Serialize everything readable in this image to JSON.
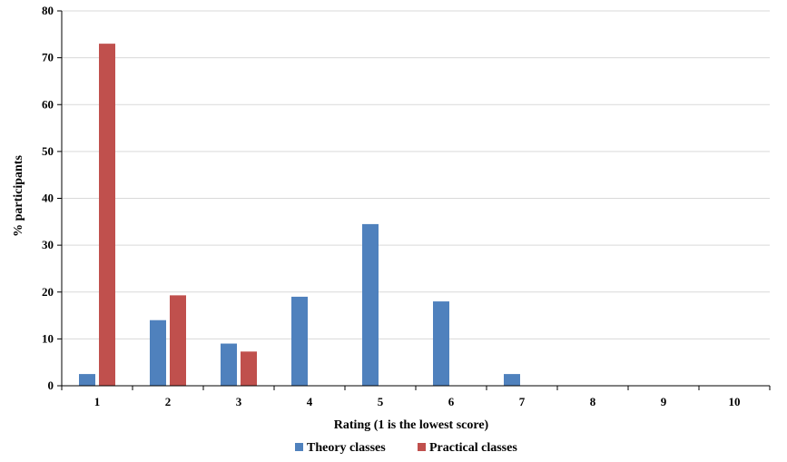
{
  "chart_data": {
    "type": "bar",
    "xlabel": "Rating (1 is the lowest score)",
    "ylabel": "% participants",
    "ylim": [
      0,
      80
    ],
    "yticks": [
      0,
      10,
      20,
      30,
      40,
      50,
      60,
      70,
      80
    ],
    "categories": [
      "1",
      "2",
      "3",
      "4",
      "5",
      "6",
      "7",
      "8",
      "9",
      "10"
    ],
    "grid": true,
    "legend_position": "bottom",
    "series": [
      {
        "name": "Theory classes",
        "color": "#4F81BD",
        "values": [
          2.5,
          14,
          9,
          19,
          34.5,
          18,
          2.5,
          0,
          0,
          0
        ]
      },
      {
        "name": "Practical classes",
        "color": "#C0504D",
        "values": [
          73,
          19.3,
          7.3,
          0,
          0,
          0,
          0,
          0,
          0,
          0
        ]
      }
    ]
  }
}
